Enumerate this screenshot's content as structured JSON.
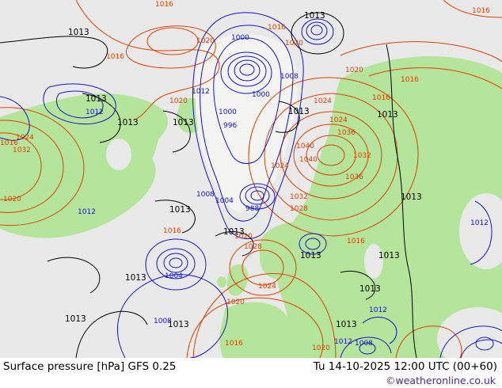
{
  "footer": {
    "title": "Surface pressure [hPa] GFS 0.25",
    "timestamp": "Tu 14-10-2025 12:00 UTC (00+60)",
    "copyright": "©weatheronline.co.uk"
  },
  "map": {
    "description": "Northern hemisphere surface pressure isobar chart",
    "colors": {
      "sea": "#e9e9e9",
      "land": "#b5e49b",
      "ice": "#f3f3f1",
      "low": "#1515cc",
      "high": "#e04000",
      "black": "#000000",
      "copyright": "#4b2991"
    },
    "labels": [
      [
        "1016",
        196,
        2,
        "high"
      ],
      [
        "1013",
        86,
        36,
        "black"
      ],
      [
        "1013",
        384,
        15,
        "black"
      ],
      [
        "1016",
        338,
        31,
        "high"
      ],
      [
        "1020",
        248,
        48,
        "high"
      ],
      [
        "1000",
        292,
        44,
        "low"
      ],
      [
        "1020",
        360,
        51,
        "high"
      ],
      [
        "1016",
        134,
        68,
        "high"
      ],
      [
        "1008",
        354,
        93,
        "low"
      ],
      [
        "1020",
        436,
        85,
        "high"
      ],
      [
        "1016",
        506,
        97,
        "high"
      ],
      [
        "1012",
        242,
        112,
        "low"
      ],
      [
        "1013",
        108,
        120,
        "black"
      ],
      [
        "1012",
        108,
        138,
        "low"
      ],
      [
        "1020",
        214,
        124,
        "high"
      ],
      [
        "1000",
        318,
        116,
        "low"
      ],
      [
        "1024",
        396,
        124,
        "high"
      ],
      [
        "1013",
        364,
        136,
        "black"
      ],
      [
        "1016",
        470,
        120,
        "high"
      ],
      [
        "1013",
        148,
        150,
        "black"
      ],
      [
        "1013",
        218,
        150,
        "black"
      ],
      [
        "1000",
        276,
        138,
        "low"
      ],
      [
        "996",
        282,
        155,
        "low"
      ],
      [
        "1024",
        416,
        148,
        "high"
      ],
      [
        "1036",
        426,
        164,
        "high"
      ],
      [
        "1013",
        476,
        140,
        "black"
      ],
      [
        "1016",
        0,
        177,
        "high"
      ],
      [
        "1024",
        20,
        170,
        "high"
      ],
      [
        "1032",
        16,
        186,
        "high"
      ],
      [
        "1040",
        374,
        181,
        "high"
      ],
      [
        "1040",
        378,
        198,
        "high"
      ],
      [
        "1024",
        342,
        206,
        "high"
      ],
      [
        "1032",
        446,
        193,
        "high"
      ],
      [
        "1036",
        436,
        220,
        "high"
      ],
      [
        "1020",
        4,
        248,
        "high"
      ],
      [
        "1012",
        98,
        264,
        "low"
      ],
      [
        "1013",
        214,
        260,
        "black"
      ],
      [
        "1008",
        248,
        242,
        "low"
      ],
      [
        "1004",
        272,
        250,
        "low"
      ],
      [
        "988",
        310,
        260,
        "low"
      ],
      [
        "1032",
        366,
        245,
        "high"
      ],
      [
        "1028",
        366,
        260,
        "high"
      ],
      [
        "1013",
        506,
        244,
        "black"
      ],
      [
        "1016",
        206,
        288,
        "high"
      ],
      [
        "1013",
        282,
        288,
        "black"
      ],
      [
        "1020",
        296,
        295,
        "high"
      ],
      [
        "1028",
        308,
        308,
        "high"
      ],
      [
        "1013",
        379,
        318,
        "black"
      ],
      [
        "1016",
        438,
        301,
        "high"
      ],
      [
        "1013",
        478,
        318,
        "black"
      ],
      [
        "1004",
        208,
        345,
        "low"
      ],
      [
        "1013",
        158,
        346,
        "black"
      ],
      [
        "1024",
        326,
        358,
        "high"
      ],
      [
        "1013",
        454,
        360,
        "black"
      ],
      [
        "1020",
        286,
        378,
        "high"
      ],
      [
        "1012",
        466,
        388,
        "low"
      ],
      [
        "1013",
        82,
        398,
        "black"
      ],
      [
        "1008",
        194,
        402,
        "low"
      ],
      [
        "1013",
        212,
        405,
        "black"
      ],
      [
        "1016",
        284,
        430,
        "high"
      ],
      [
        "1012",
        422,
        428,
        "low"
      ],
      [
        "1008",
        448,
        430,
        "low"
      ],
      [
        "1020",
        394,
        436,
        "high"
      ],
      [
        "1012",
        594,
        278,
        "low"
      ],
      [
        "1016",
        596,
        10,
        "high"
      ],
      [
        "1013",
        424,
        405,
        "black"
      ]
    ]
  }
}
